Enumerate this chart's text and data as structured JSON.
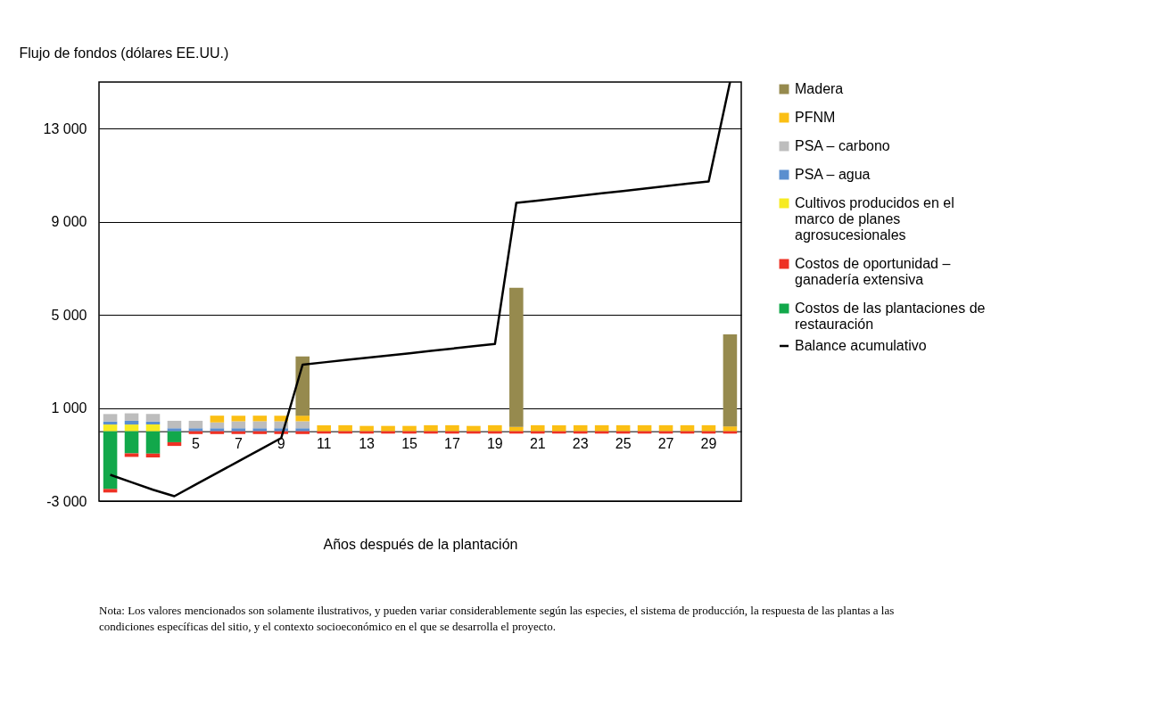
{
  "chart_data": {
    "type": "bar",
    "stacked": true,
    "ylabel": "Flujo de fondos (dólares EE.UU.)",
    "xlabel": "Años después de la plantación",
    "categories": [
      null,
      null,
      null,
      null,
      "5",
      null,
      "7",
      null,
      "9",
      null,
      "11",
      null,
      "13",
      null,
      "15",
      null,
      "17",
      null,
      "19",
      null,
      "21",
      null,
      "23",
      null,
      "25",
      null,
      "27",
      null,
      "29",
      null
    ],
    "ylim": [
      -3000,
      15000
    ],
    "yticks": [
      {
        "value": -3000,
        "label": "-3 000"
      },
      {
        "value": 1000,
        "label": "1 000"
      },
      {
        "value": 5000,
        "label": "5 000"
      },
      {
        "value": 9000,
        "label": "9 000"
      },
      {
        "value": 13000,
        "label": "13 000"
      }
    ],
    "grid": "y",
    "legend": "right",
    "series": [
      {
        "name": "Cultivos producidos en el marco de planes agrosucesionales",
        "color": "#f6eb21",
        "values": [
          290,
          290,
          290,
          null,
          null,
          null,
          null,
          null,
          null,
          null,
          null,
          null,
          null,
          null,
          null,
          null,
          null,
          null,
          null,
          null,
          null,
          null,
          null,
          null,
          null,
          null,
          null,
          null,
          null,
          null
        ]
      },
      {
        "name": "PSA – agua",
        "color": "#5b8fcf",
        "values": [
          130,
          160,
          130,
          130,
          130,
          130,
          130,
          130,
          130,
          130,
          null,
          null,
          null,
          null,
          null,
          null,
          null,
          null,
          null,
          null,
          null,
          null,
          null,
          null,
          null,
          null,
          null,
          null,
          null,
          null
        ]
      },
      {
        "name": "PSA – carbono",
        "color": "#bdbdbd",
        "values": [
          320,
          320,
          320,
          320,
          320,
          250,
          300,
          300,
          300,
          300,
          null,
          null,
          null,
          null,
          null,
          null,
          null,
          null,
          null,
          null,
          null,
          null,
          null,
          null,
          null,
          null,
          null,
          null,
          null,
          null
        ]
      },
      {
        "name": "PFNM",
        "color": "#fbbf14",
        "values": [
          null,
          null,
          null,
          null,
          null,
          290,
          240,
          240,
          240,
          240,
          260,
          260,
          230,
          230,
          230,
          260,
          260,
          230,
          260,
          190,
          260,
          260,
          260,
          260,
          260,
          260,
          260,
          260,
          260,
          210
        ]
      },
      {
        "name": "Madera",
        "color": "#968a4e",
        "values": [
          null,
          null,
          null,
          null,
          null,
          null,
          null,
          null,
          null,
          2540,
          null,
          null,
          null,
          null,
          null,
          null,
          null,
          null,
          null,
          5970,
          null,
          null,
          null,
          null,
          null,
          null,
          null,
          null,
          null,
          3950
        ]
      },
      {
        "name": "Costos de las plantaciones de restauración",
        "color": "#12a84b",
        "values": [
          -2480,
          -950,
          -960,
          -470,
          null,
          null,
          null,
          null,
          null,
          null,
          null,
          null,
          null,
          null,
          null,
          null,
          null,
          null,
          null,
          null,
          null,
          null,
          null,
          null,
          null,
          null,
          null,
          null,
          null,
          null
        ]
      },
      {
        "name": "Costos de oportunidad – ganadería extensiva",
        "color": "#ee3124",
        "values": [
          -150,
          -150,
          -160,
          -160,
          -120,
          -120,
          -120,
          -120,
          -120,
          -120,
          -100,
          -100,
          -100,
          -100,
          -100,
          -100,
          -100,
          -100,
          -100,
          -100,
          -100,
          -100,
          -100,
          -100,
          -100,
          -100,
          -100,
          -100,
          -100,
          -100
        ]
      },
      {
        "name": "Balance acumulativo",
        "type": "line",
        "line_style": "solid",
        "color": "#000000",
        "values": [
          -1870,
          -2190,
          -2510,
          -2790,
          -2290,
          -1790,
          -1290,
          -790,
          -290,
          2860,
          2960,
          3060,
          3160,
          3250,
          3350,
          3450,
          3550,
          3650,
          3750,
          9810,
          9910,
          10010,
          10120,
          10220,
          10320,
          10420,
          10530,
          10630,
          10730,
          15000
        ]
      }
    ],
    "annotations": [
      "Nota: Los valores mencionados son solamente ilustrativos, y pueden variar considerablemente según las especies, el sistema de producción, la respuesta de las plantas a las condiciones específicas del sitio, y el contexto socioeconómico en el que se desarrolla el proyecto."
    ]
  }
}
